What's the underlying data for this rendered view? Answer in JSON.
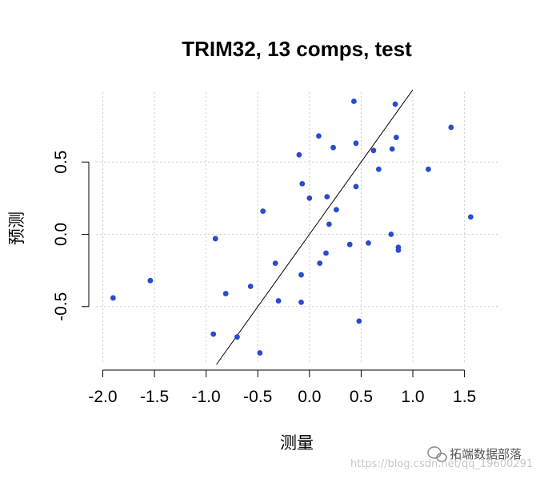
{
  "chart_data": {
    "type": "scatter",
    "title": "TRIM32, 13 comps, test",
    "xlabel": "测量",
    "ylabel": "预测",
    "xlim": [
      -2.05,
      1.65
    ],
    "ylim": [
      -0.9,
      1.0
    ],
    "x_ticks": [
      -2.0,
      -1.5,
      -1.0,
      -0.5,
      0.0,
      0.5,
      1.0,
      1.5
    ],
    "x_tick_labels": [
      "-2.0",
      "-1.5",
      "-1.0",
      "-0.5",
      "0.0",
      "0.5",
      "1.0",
      "1.5"
    ],
    "y_ticks": [
      -0.5,
      0.0,
      0.5
    ],
    "y_tick_labels": [
      "-0.5",
      "0.0",
      "0.5"
    ],
    "grid": true,
    "reference_line": {
      "slope": 1,
      "intercept": 0
    },
    "point_color": "#2a4bcf",
    "line_color": "#000000",
    "grid_color": "#cccccc",
    "points": [
      {
        "x": -1.9,
        "y": -0.44
      },
      {
        "x": -1.54,
        "y": -0.32
      },
      {
        "x": -0.93,
        "y": -0.69
      },
      {
        "x": -0.91,
        "y": -0.03
      },
      {
        "x": -0.81,
        "y": -0.41
      },
      {
        "x": -0.7,
        "y": -0.71
      },
      {
        "x": -0.57,
        "y": -0.36
      },
      {
        "x": -0.48,
        "y": -0.82
      },
      {
        "x": -0.45,
        "y": 0.16
      },
      {
        "x": -0.33,
        "y": -0.2
      },
      {
        "x": -0.3,
        "y": -0.46
      },
      {
        "x": -0.1,
        "y": 0.55
      },
      {
        "x": -0.08,
        "y": -0.28
      },
      {
        "x": -0.08,
        "y": -0.47
      },
      {
        "x": -0.07,
        "y": 0.35
      },
      {
        "x": 0.0,
        "y": 0.25
      },
      {
        "x": 0.09,
        "y": 0.68
      },
      {
        "x": 0.1,
        "y": -0.2
      },
      {
        "x": 0.16,
        "y": -0.13
      },
      {
        "x": 0.17,
        "y": 0.26
      },
      {
        "x": 0.19,
        "y": 0.07
      },
      {
        "x": 0.23,
        "y": 0.6
      },
      {
        "x": 0.26,
        "y": 0.17
      },
      {
        "x": 0.39,
        "y": -0.07
      },
      {
        "x": 0.43,
        "y": 0.92
      },
      {
        "x": 0.45,
        "y": 0.63
      },
      {
        "x": 0.45,
        "y": 0.33
      },
      {
        "x": 0.48,
        "y": -0.6
      },
      {
        "x": 0.57,
        "y": -0.06
      },
      {
        "x": 0.62,
        "y": 0.58
      },
      {
        "x": 0.67,
        "y": 0.45
      },
      {
        "x": 0.79,
        "y": 0.0
      },
      {
        "x": 0.8,
        "y": 0.59
      },
      {
        "x": 0.83,
        "y": 0.9
      },
      {
        "x": 0.84,
        "y": 0.67
      },
      {
        "x": 0.86,
        "y": -0.09
      },
      {
        "x": 0.86,
        "y": -0.11
      },
      {
        "x": 1.15,
        "y": 0.45
      },
      {
        "x": 1.37,
        "y": 0.74
      },
      {
        "x": 1.56,
        "y": 0.12
      }
    ]
  },
  "watermark": {
    "brand": "拓端数据部落",
    "url": "https://blog.csdn.net/qq_19600291"
  }
}
